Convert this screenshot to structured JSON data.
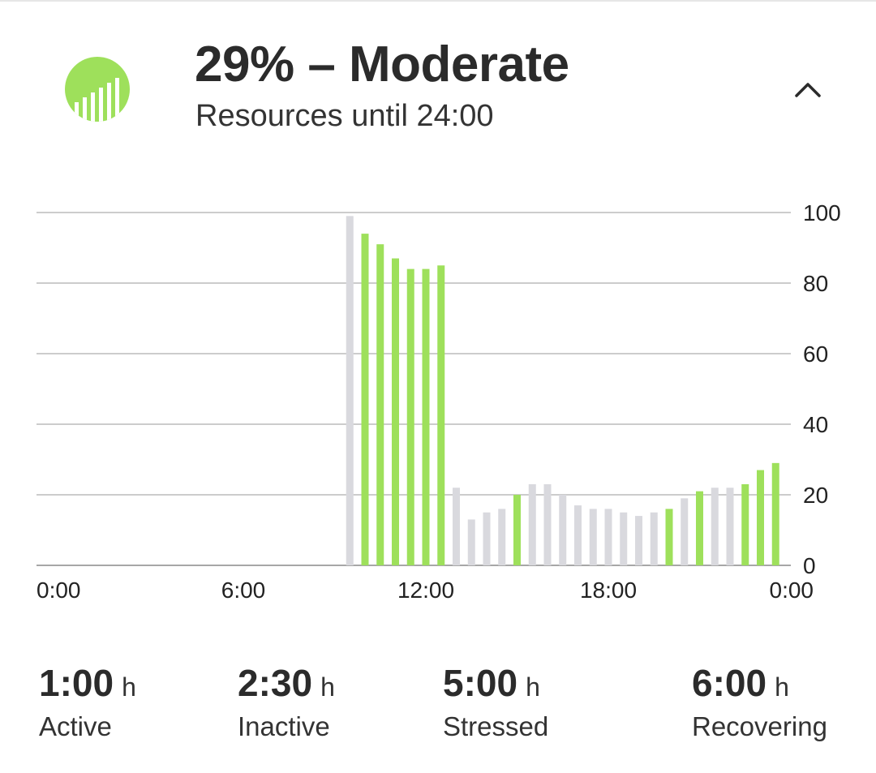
{
  "header": {
    "title": "29% – Moderate",
    "subtitle": "Resources until 24:00",
    "icon": "resources-gauge-icon",
    "collapse_icon": "chevron-up-icon",
    "accent_color": "#9ee05b"
  },
  "chart_data": {
    "type": "bar",
    "title": "",
    "xlabel": "",
    "ylabel": "",
    "ylim": [
      0,
      100
    ],
    "yticks": [
      0,
      20,
      40,
      60,
      80,
      100
    ],
    "y_axis_position": "right",
    "grid": true,
    "x_range_hours": [
      0,
      24
    ],
    "xtick_labels": [
      "0:00",
      "6:00",
      "12:00",
      "18:00",
      "0:00"
    ],
    "colors": {
      "green": "#9ee05b",
      "gray": "#d9d9de"
    },
    "bars": [
      {
        "time": "9:30",
        "value": 99,
        "color": "gray"
      },
      {
        "time": "10:00",
        "value": 94,
        "color": "green"
      },
      {
        "time": "10:30",
        "value": 91,
        "color": "green"
      },
      {
        "time": "11:00",
        "value": 87,
        "color": "green"
      },
      {
        "time": "11:30",
        "value": 84,
        "color": "green"
      },
      {
        "time": "12:00",
        "value": 84,
        "color": "green"
      },
      {
        "time": "12:30",
        "value": 85,
        "color": "green"
      },
      {
        "time": "13:00",
        "value": 22,
        "color": "gray"
      },
      {
        "time": "13:30",
        "value": 13,
        "color": "gray"
      },
      {
        "time": "14:00",
        "value": 15,
        "color": "gray"
      },
      {
        "time": "14:30",
        "value": 16,
        "color": "gray"
      },
      {
        "time": "15:00",
        "value": 20,
        "color": "green"
      },
      {
        "time": "15:30",
        "value": 23,
        "color": "gray"
      },
      {
        "time": "16:00",
        "value": 23,
        "color": "gray"
      },
      {
        "time": "16:30",
        "value": 20,
        "color": "gray"
      },
      {
        "time": "17:00",
        "value": 17,
        "color": "gray"
      },
      {
        "time": "17:30",
        "value": 16,
        "color": "gray"
      },
      {
        "time": "18:00",
        "value": 16,
        "color": "gray"
      },
      {
        "time": "18:30",
        "value": 15,
        "color": "gray"
      },
      {
        "time": "19:00",
        "value": 14,
        "color": "gray"
      },
      {
        "time": "19:30",
        "value": 15,
        "color": "gray"
      },
      {
        "time": "20:00",
        "value": 16,
        "color": "green"
      },
      {
        "time": "20:30",
        "value": 19,
        "color": "gray"
      },
      {
        "time": "21:00",
        "value": 21,
        "color": "green"
      },
      {
        "time": "21:30",
        "value": 22,
        "color": "gray"
      },
      {
        "time": "22:00",
        "value": 22,
        "color": "gray"
      },
      {
        "time": "22:30",
        "value": 23,
        "color": "green"
      },
      {
        "time": "23:00",
        "value": 27,
        "color": "green"
      },
      {
        "time": "23:30",
        "value": 29,
        "color": "green"
      }
    ]
  },
  "stats": [
    {
      "value": "1:00",
      "unit": "h",
      "label": "Active"
    },
    {
      "value": "2:30",
      "unit": "h",
      "label": "Inactive"
    },
    {
      "value": "5:00",
      "unit": "h",
      "label": "Stressed"
    },
    {
      "value": "6:00",
      "unit": "h",
      "label": "Recovering"
    }
  ]
}
